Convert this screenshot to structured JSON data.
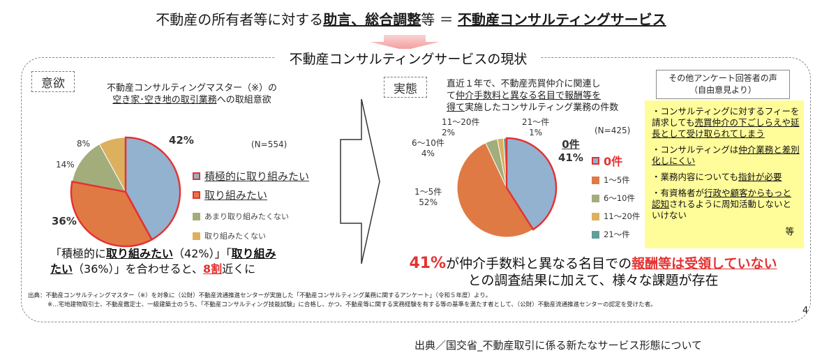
{
  "header": {
    "title_prefix": "不動産の所有者等に対する",
    "title_bold1": "助言、総合調整",
    "title_mid": "等 ＝ ",
    "title_bold2": "不動産コンサルティングサービス"
  },
  "panel": {
    "title": "不動産コンサルティングサービスの現状",
    "tag_left": "意欲",
    "tag_right": "実態"
  },
  "left_chart": {
    "title_line1": "不動産コンサルティングマスター（※）の",
    "title_line2a": "空き家･空き地の取引業務",
    "title_line2b": "への取組意欲",
    "n_label": "(N=554)",
    "labels": [
      "42%",
      "36%",
      "14%",
      "8%"
    ],
    "legend": [
      "積極的に取り組みたい",
      "取り組みたい",
      "あまり取り組みたくない",
      "取り組みたくない"
    ]
  },
  "right_chart": {
    "title_line1": "直近１年で、不動産売買仲介に関連し",
    "title_line2a": "て",
    "title_line2b": "仲介手数料と異なる名目で報酬等を",
    "title_line3a": "得て",
    "title_line3b": "実施したコンサルティング業務の件数",
    "n_label": "(N=425)",
    "label_0": "0件",
    "label_0_pct": "41%",
    "label_1_5": "1～5件",
    "label_1_5_pct": "52%",
    "label_6_10": "6～10件",
    "label_6_10_pct": "4%",
    "label_11_20": "11～20件",
    "label_11_20_pct": "2%",
    "label_21": "21～件",
    "label_21_pct": "1%",
    "legend": [
      "0件",
      "1～5件",
      "6～10件",
      "11～20件",
      "21～件"
    ]
  },
  "chart_data": [
    {
      "type": "pie",
      "title": "不動産コンサルティングマスター（※）の空き家･空き地の取引業務への取組意欲",
      "n": 554,
      "categories": [
        "積極的に取り組みたい",
        "取り組みたい",
        "あまり取り組みたくない",
        "取り組みたくない"
      ],
      "values": [
        42,
        36,
        14,
        8
      ],
      "colors": [
        "#93b2cf",
        "#e07a45",
        "#a3ad7c",
        "#ddb060"
      ],
      "highlight_outline": "#e43232"
    },
    {
      "type": "pie",
      "title": "直近１年で、不動産売買仲介に関連して仲介手数料と異なる名目で報酬等を得て実施したコンサルティング業務の件数",
      "n": 425,
      "categories": [
        "0件",
        "1～5件",
        "6～10件",
        "11～20件",
        "21～件"
      ],
      "values": [
        41,
        52,
        4,
        2,
        1
      ],
      "colors": [
        "#93b2cf",
        "#e07a45",
        "#a3ad7c",
        "#ddb060",
        "#5f9e9a"
      ],
      "highlight_outline": "#e43232"
    }
  ],
  "summary_left": {
    "q1": "「積極的に",
    "b1": "取り組みたい",
    "p1": "（42%）」「",
    "b2a": "取り組み",
    "b2b": "たい",
    "p2": "（36%）」を合わせると、",
    "r": "8割",
    "end": "近くに"
  },
  "summary_right": {
    "pct": "41%",
    "mid": "が仲介手数料と異なる名目での",
    "red": "報酬等は受領していない",
    "line2": "との調査結果に加えて、様々な課題が存在"
  },
  "voices": {
    "head_line1": "その他アンケート回答者の声",
    "head_line2": "（自由意見より）",
    "item1a": "・コンサルティングに対するフィーを請求しても",
    "item1b": "売買仲介の下ごしらえや延長として受け取られてしまう",
    "item2a": "・コンサルティングは",
    "item2b": "仲介業務と差別化しにくい",
    "item3a": "・業務内容についても",
    "item3b": "指針が必要",
    "item4a": "・有資格者が",
    "item4b": "行政や顧客からもっと認知",
    "item4c": "されるように周知活動しないといけない",
    "end": "等"
  },
  "source": {
    "line1": "出典：不動産コンサルティングマスター（※）を対象に（公財）不動産流通推進センターが実施した「不動産コンサルティング業務に関するアンケート」（令和５年度）より。",
    "line2": "※…宅地建物取引士、不動産鑑定士、一級建築士のうち、「不動産コンサルティング技能試験」に合格し、かつ、不動産等に関する実務経験を有する等の基準を満たす者として、（公財）不動産流通推進センターの認定を受けた者。"
  },
  "page_number": "4",
  "footer": "出典／国交省_不動産取引に係る新たなサービス形態について"
}
